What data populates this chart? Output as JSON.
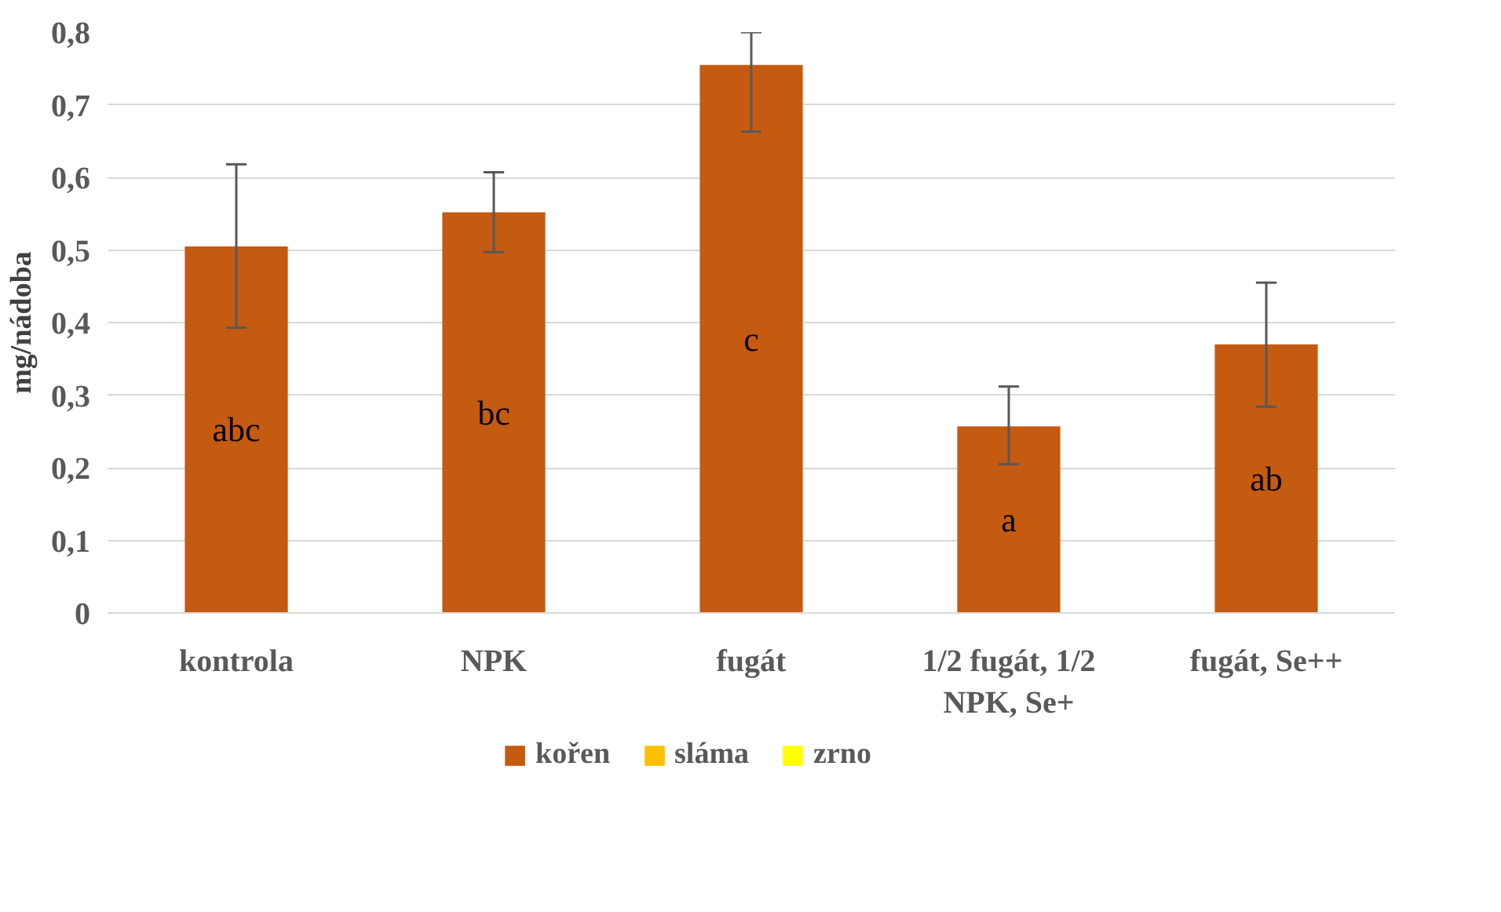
{
  "chart_data": {
    "type": "bar",
    "ylabel": "mg/nádoba",
    "categories": [
      "kontrola",
      "NPK",
      "fugát",
      "1/2 fugát, 1/2 NPK, Se+",
      "fugát, Se++"
    ],
    "series": [
      {
        "name": "kořen",
        "color": "#c55a11",
        "values": [
          0.505,
          0.552,
          0.755,
          0.257,
          0.37
        ],
        "errors": [
          [
            0.393,
            0.618
          ],
          [
            0.497,
            0.607
          ],
          [
            0.663,
            0.8
          ],
          [
            0.205,
            0.312
          ],
          [
            0.284,
            0.455
          ]
        ]
      },
      {
        "name": "sláma",
        "color": "#ffc000",
        "values": [
          null,
          null,
          null,
          null,
          null
        ]
      },
      {
        "name": "zrno",
        "color": "#ffff00",
        "values": [
          null,
          null,
          null,
          null,
          null
        ]
      }
    ],
    "ylim": [
      0,
      0.8
    ],
    "yticks": [
      0,
      {
        "value": 0.1,
        "label": "0,1"
      },
      {
        "value": 0.2,
        "label": "0,2"
      },
      {
        "value": 0.3,
        "label": "0,3"
      },
      {
        "value": 0.4,
        "label": "0,4"
      },
      {
        "value": 0.5,
        "label": "0,5"
      },
      {
        "value": 0.6,
        "label": "0,6"
      },
      {
        "value": 0.7,
        "label": "0,7"
      },
      {
        "value": 0.8,
        "label": "0,8"
      }
    ],
    "grid": "y",
    "legend": "bottom",
    "annotations": [
      "abc",
      "bc",
      "c",
      "a",
      "ab"
    ]
  }
}
